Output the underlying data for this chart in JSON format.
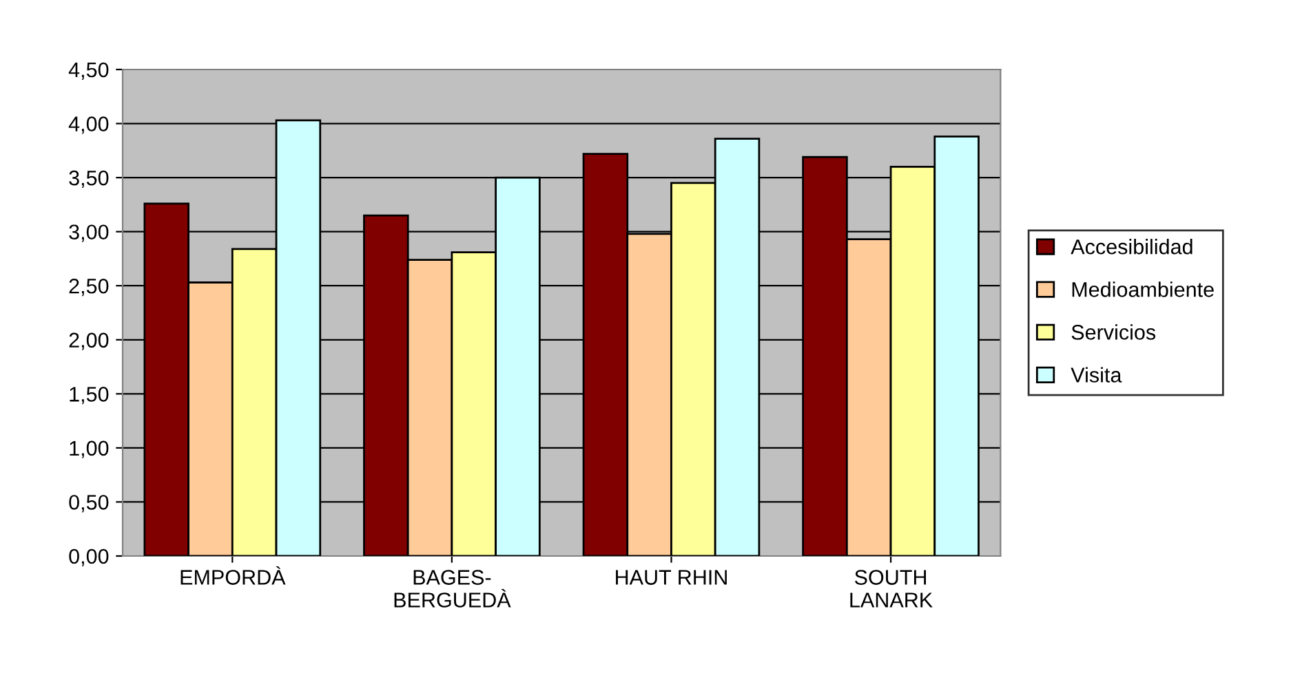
{
  "chart_data": {
    "type": "bar",
    "categories": [
      "EMPORDÀ",
      "BAGES-\nBERGUEDÀ",
      "HAUT RHIN",
      "SOUTH\nLANARK"
    ],
    "series": [
      {
        "name": "Accesibilidad",
        "color": "#800000",
        "values": [
          3.26,
          3.15,
          3.72,
          3.69
        ]
      },
      {
        "name": "Medioambiente",
        "color": "#ffcc99",
        "values": [
          2.53,
          2.74,
          2.98,
          2.93
        ]
      },
      {
        "name": "Servicios",
        "color": "#ffff99",
        "values": [
          2.84,
          2.81,
          3.45,
          3.6
        ]
      },
      {
        "name": "Visita",
        "color": "#ccffff",
        "values": [
          4.03,
          3.5,
          3.86,
          3.88
        ]
      }
    ],
    "ylim": [
      0,
      4.5
    ],
    "yticks": [
      {
        "value": 0,
        "label": "0,00"
      },
      {
        "value": 0.5,
        "label": "0,50"
      },
      {
        "value": 1,
        "label": "1,00"
      },
      {
        "value": 1.5,
        "label": "1,50"
      },
      {
        "value": 2,
        "label": "2,00"
      },
      {
        "value": 2.5,
        "label": "2,50"
      },
      {
        "value": 3,
        "label": "3,00"
      },
      {
        "value": 3.5,
        "label": "3,50"
      },
      {
        "value": 4,
        "label": "4,00"
      },
      {
        "value": 4.5,
        "label": "4,50"
      }
    ],
    "grid": "y",
    "legend": "right"
  }
}
